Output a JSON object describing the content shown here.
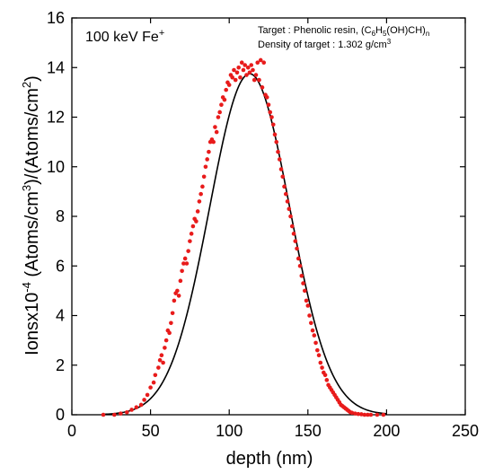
{
  "chart_data": {
    "type": "scatter",
    "xlabel": "depth (nm)",
    "ylabel_parts": [
      "Ionsx10",
      "-4",
      " (Atoms/cm",
      "3",
      ")/(Atoms/cm",
      "2",
      ")"
    ],
    "xlim": [
      0,
      250
    ],
    "ylim": [
      0,
      16
    ],
    "x_ticks": [
      0,
      50,
      100,
      150,
      200,
      250
    ],
    "y_ticks": [
      0,
      2,
      4,
      6,
      8,
      10,
      12,
      14,
      16
    ],
    "grid": false,
    "legend": "none",
    "annotations": {
      "ion_prefix": "100 keV Fe",
      "ion_sup": "+",
      "target_line": [
        "Target : Phenolic  resin,  (C",
        "6",
        "H",
        "5",
        "(OH)CH)",
        "n"
      ],
      "density_line": [
        "Density of target : 1.302 g/cm",
        "3"
      ]
    },
    "series": [
      {
        "kind": "points",
        "color": "#e81b1b",
        "x": [
          20,
          27,
          31,
          35,
          38,
          41,
          44,
          46,
          48,
          50,
          52,
          53,
          55,
          56,
          57,
          58,
          59,
          60,
          61,
          62,
          63,
          64,
          65,
          66,
          67,
          68,
          69,
          70,
          71,
          72,
          73,
          74,
          75,
          76,
          77,
          78,
          79,
          80,
          81,
          82,
          83,
          84,
          85,
          86,
          87,
          88,
          89,
          90,
          91,
          92,
          93,
          94,
          95,
          96,
          97,
          98,
          99,
          100,
          101,
          102,
          103,
          104,
          105,
          106,
          107,
          108,
          109,
          110,
          111,
          112,
          113,
          114,
          115,
          116,
          117,
          118,
          119,
          120,
          121,
          122,
          123,
          124,
          125,
          126,
          127,
          128,
          129,
          130,
          131,
          132,
          133,
          134,
          135,
          136,
          137,
          138,
          139,
          140,
          141,
          142,
          143,
          144,
          145,
          146,
          147,
          148,
          149,
          150,
          151,
          152,
          153,
          154,
          155,
          156,
          157,
          158,
          159,
          160,
          161,
          162,
          163,
          164,
          165,
          166,
          167,
          168,
          169,
          170,
          171,
          172,
          173,
          174,
          175,
          176,
          177,
          178,
          180,
          182,
          184,
          186,
          188,
          190,
          194,
          198
        ],
        "y": [
          0.0,
          0.0,
          0.05,
          0.1,
          0.2,
          0.3,
          0.4,
          0.6,
          0.8,
          1.1,
          1.3,
          1.6,
          1.9,
          2.2,
          2.4,
          2.1,
          2.7,
          3.0,
          3.4,
          3.3,
          3.7,
          4.1,
          4.6,
          4.9,
          5.0,
          4.8,
          5.4,
          5.8,
          6.1,
          6.3,
          6.1,
          6.6,
          7.0,
          7.3,
          7.6,
          7.9,
          7.8,
          8.2,
          8.6,
          8.9,
          9.2,
          9.6,
          10.0,
          10.3,
          10.6,
          11.0,
          11.1,
          11.0,
          11.6,
          11.4,
          12.0,
          12.2,
          12.5,
          12.8,
          12.7,
          13.1,
          13.4,
          13.3,
          13.7,
          13.6,
          13.9,
          13.5,
          13.8,
          14.0,
          13.6,
          14.2,
          13.9,
          14.1,
          13.7,
          14.0,
          13.8,
          14.1,
          13.9,
          13.5,
          13.7,
          14.2,
          13.5,
          14.3,
          13.2,
          14.2,
          12.9,
          12.8,
          12.5,
          12.2,
          12.0,
          11.7,
          11.3,
          11.0,
          10.6,
          10.3,
          9.9,
          9.6,
          9.2,
          8.9,
          8.6,
          8.3,
          8.0,
          7.6,
          7.3,
          7.0,
          6.7,
          6.3,
          6.0,
          5.6,
          5.3,
          5.0,
          4.6,
          4.4,
          4.0,
          3.7,
          3.4,
          3.2,
          2.9,
          2.6,
          2.4,
          2.1,
          1.9,
          1.7,
          1.6,
          1.4,
          1.2,
          1.1,
          1.0,
          0.9,
          0.8,
          0.7,
          0.6,
          0.5,
          0.4,
          0.35,
          0.3,
          0.25,
          0.2,
          0.15,
          0.1,
          0.08,
          0.05,
          0.03,
          0.02,
          0.0,
          0.0,
          0.0,
          0.0,
          0.0
        ]
      },
      {
        "kind": "fit",
        "color": "#000000",
        "function": "gaussian",
        "amplitude": 13.75,
        "center": 113,
        "sigma": 25.5
      }
    ]
  }
}
